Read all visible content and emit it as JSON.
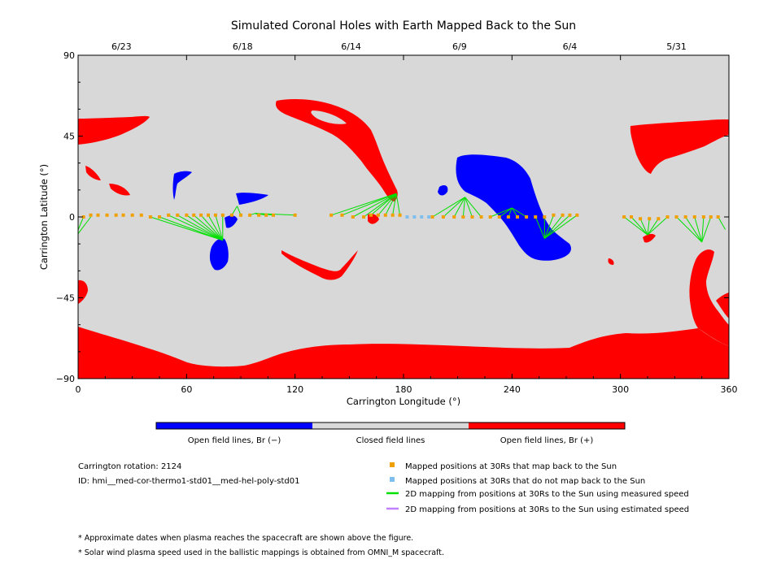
{
  "chart_data": {
    "type": "scatter",
    "title": "Simulated Coronal Holes with Earth Mapped Back to the Sun",
    "xlabel": "Carrington Longitude (°)",
    "ylabel": "Carrington Latitude (°)",
    "xlim": [
      0,
      360
    ],
    "ylim": [
      -90,
      90
    ],
    "x_ticks": [
      "0",
      "60",
      "120",
      "180",
      "240",
      "300",
      "360"
    ],
    "y_ticks": [
      "90",
      "45",
      "0",
      "-45",
      "-90"
    ],
    "top_date_ticks": [
      {
        "lon": 24,
        "label": "6/23"
      },
      {
        "lon": 91,
        "label": "6/18"
      },
      {
        "lon": 151,
        "label": "6/14"
      },
      {
        "lon": 211,
        "label": "6/9"
      },
      {
        "lon": 272,
        "label": "6/4"
      },
      {
        "lon": 331,
        "label": "5/31"
      }
    ],
    "colorbar": {
      "colors": [
        "#0000ff",
        "#d8d8d8",
        "#ff0000"
      ],
      "labels": [
        "Open field lines, Br (−)",
        "Closed field lines",
        "Open field lines, Br (+)"
      ]
    },
    "series": [
      {
        "name": "Mapped positions at 30Rs that map back to the Sun",
        "color": "#f0a000",
        "x": [
          3,
          7,
          11,
          16,
          21,
          25,
          30,
          35,
          40,
          45,
          50,
          55,
          60,
          64,
          68,
          72,
          76,
          80,
          85,
          90,
          95,
          100,
          104,
          108,
          120,
          140,
          146,
          152,
          158,
          162,
          166,
          170,
          174,
          178,
          196,
          202,
          208,
          213,
          218,
          223,
          228,
          233,
          238,
          243,
          248,
          253,
          258,
          263,
          268,
          272,
          276,
          302,
          306,
          311,
          316,
          321,
          326,
          331,
          336,
          341,
          346,
          350,
          354
        ],
        "y": [
          0,
          1,
          1,
          1,
          1,
          1,
          1,
          1,
          0,
          0,
          1,
          1,
          1,
          1,
          1,
          1,
          1,
          1,
          1,
          1,
          1,
          1,
          1,
          1,
          1,
          1,
          1,
          0,
          0,
          1,
          1,
          1,
          1,
          1,
          0,
          0,
          0,
          0,
          0,
          0,
          0,
          0,
          0,
          0,
          0,
          0,
          0,
          1,
          1,
          1,
          1,
          0,
          0,
          -1,
          -1,
          -1,
          0,
          0,
          0,
          0,
          0,
          0,
          0
        ]
      },
      {
        "name": "Mapped positions at 30Rs that do not map back to the Sun",
        "color": "#7fbfef",
        "x": [
          182,
          186,
          190,
          194
        ],
        "y": [
          0,
          0,
          0,
          0
        ]
      },
      {
        "name": "2D mapping from positions at 30Rs to the Sun using measured speed",
        "color": "#00e000",
        "x": [],
        "y": []
      },
      {
        "name": "2D mapping from positions at 30Rs to the Sun using estimated speed",
        "color": "#c080ff",
        "x": [],
        "y": []
      }
    ],
    "footpoints": [
      {
        "lon": 80,
        "lat": -13
      },
      {
        "lon": 88,
        "lat": 6
      },
      {
        "lon": 98,
        "lat": 2
      },
      {
        "lon": 176,
        "lat": 13
      },
      {
        "lon": 214,
        "lat": 11
      },
      {
        "lon": 240,
        "lat": 5
      },
      {
        "lon": 258,
        "lat": -12
      },
      {
        "lon": 315,
        "lat": -10
      },
      {
        "lon": 345,
        "lat": -14
      },
      {
        "lon": 358,
        "lat": -7
      }
    ],
    "grid": false
  },
  "notes": {
    "carrington_rotation": "Carrington rotation: 2124",
    "model_id": "ID: hmi__med-cor-thermo1-std01__med-hel-poly-std01",
    "footnote_1": "* Approximate dates when plasma reaches the spacecraft are shown above the figure.",
    "footnote_2": "* Solar wind plasma speed used in the ballistic mappings is obtained from OMNI_M spacecraft."
  }
}
